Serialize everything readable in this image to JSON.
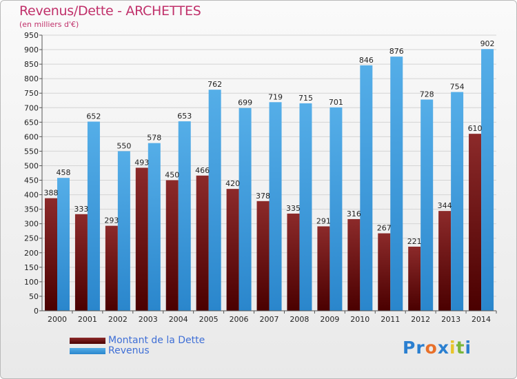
{
  "chart_data": {
    "type": "bar",
    "title": "Revenus/Dette - ARCHETTES",
    "subtitle": "(en milliers d'€)",
    "categories": [
      "2000",
      "2001",
      "2002",
      "2003",
      "2004",
      "2005",
      "2006",
      "2007",
      "2008",
      "2009",
      "2010",
      "2011",
      "2012",
      "2013",
      "2014"
    ],
    "series": [
      {
        "name": "Montant de la Dette",
        "color": "#7a1a1a",
        "values": [
          388,
          333,
          293,
          493,
          450,
          466,
          420,
          378,
          335,
          291,
          316,
          267,
          221,
          344,
          610
        ]
      },
      {
        "name": "Revenus",
        "color": "#3f9ee0",
        "values": [
          458,
          652,
          550,
          578,
          653,
          762,
          699,
          719,
          715,
          701,
          846,
          876,
          728,
          754,
          902
        ]
      }
    ],
    "ylim": [
      0,
      950
    ],
    "ytick_step": 50,
    "grid": true,
    "legend": "bottom-left"
  },
  "logo": {
    "text": "Proxiti",
    "letters": [
      "P",
      "r",
      "o",
      "x",
      "i",
      "t",
      "i"
    ],
    "colors": [
      "#2a7fd0",
      "#2a7fd0",
      "#e8702a",
      "#2a7fd0",
      "#e8c42a",
      "#7ab63a",
      "#2a7fd0"
    ]
  }
}
